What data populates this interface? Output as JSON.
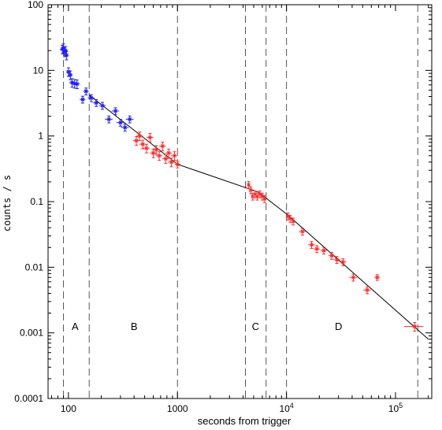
{
  "chart_data": {
    "type": "scatter",
    "title": "",
    "xlabel": "seconds from trigger",
    "ylabel": "counts / s",
    "x_scale": "log",
    "y_scale": "log",
    "xlim": [
      65,
      215000
    ],
    "ylim": [
      0.0001,
      100
    ],
    "grid": false,
    "x_ticks": [
      {
        "value": 100,
        "label": "100"
      },
      {
        "value": 1000,
        "label": "1000"
      },
      {
        "value": 10000,
        "label": "10",
        "sup": "4"
      },
      {
        "value": 100000,
        "label": "10",
        "sup": "5"
      }
    ],
    "y_ticks": [
      {
        "value": 100,
        "label": "100"
      },
      {
        "value": 10,
        "label": "10"
      },
      {
        "value": 1,
        "label": "1"
      },
      {
        "value": 0.1,
        "label": "0.1"
      },
      {
        "value": 0.01,
        "label": "0.01"
      },
      {
        "value": 0.001,
        "label": "0.001"
      },
      {
        "value": 0.0001,
        "label": "0.0001"
      }
    ],
    "colors": {
      "series_blue": "#1a1aff",
      "series_red": "#ff2a2a",
      "model": "#000000",
      "divider": "#555555"
    },
    "dividers": [
      90,
      155,
      1000,
      4200,
      6500,
      10000,
      160000
    ],
    "phase_labels": [
      {
        "text": "A",
        "x": 115,
        "y": 0.0011
      },
      {
        "text": "B",
        "x": 400,
        "y": 0.0011
      },
      {
        "text": "C",
        "x": 5200,
        "y": 0.0011
      },
      {
        "text": "D",
        "x": 30000,
        "y": 0.0011
      }
    ],
    "model_line": [
      [
        155,
        4.2
      ],
      [
        1000,
        0.37
      ],
      [
        5500,
        0.14
      ],
      [
        10000,
        0.065
      ],
      [
        200000,
        0.0008
      ]
    ],
    "series": [
      {
        "color_key": "series_blue",
        "points": [
          [
            88,
            21,
            0.05,
            0.15
          ],
          [
            90,
            22,
            0.05,
            0.15
          ],
          [
            92,
            19,
            0.05,
            0.15
          ],
          [
            94,
            20,
            0.05,
            0.15
          ],
          [
            96,
            17,
            0.05,
            0.15
          ],
          [
            100,
            9.5,
            0.05,
            0.15
          ],
          [
            104,
            8.5,
            0.05,
            0.15
          ],
          [
            108,
            6.5,
            0.06,
            0.15
          ],
          [
            114,
            6.3,
            0.06,
            0.15
          ],
          [
            120,
            6.2,
            0.06,
            0.15
          ],
          [
            135,
            3.6,
            0.06,
            0.12
          ],
          [
            145,
            4.8,
            0.06,
            0.12
          ],
          [
            162,
            3.8,
            0.07,
            0.12
          ],
          [
            180,
            3.2,
            0.07,
            0.12
          ],
          [
            205,
            2.9,
            0.07,
            0.12
          ],
          [
            235,
            1.8,
            0.08,
            0.12
          ],
          [
            270,
            2.4,
            0.08,
            0.12
          ],
          [
            300,
            1.6,
            0.08,
            0.12
          ],
          [
            330,
            1.35,
            0.08,
            0.12
          ],
          [
            365,
            1.8,
            0.08,
            0.12
          ]
        ]
      },
      {
        "color_key": "series_red",
        "points": [
          [
            420,
            0.85,
            0.07,
            0.15
          ],
          [
            450,
            1.0,
            0.07,
            0.15
          ],
          [
            480,
            0.75,
            0.07,
            0.15
          ],
          [
            520,
            0.65,
            0.07,
            0.15
          ],
          [
            560,
            0.95,
            0.07,
            0.15
          ],
          [
            600,
            0.55,
            0.07,
            0.15
          ],
          [
            640,
            0.62,
            0.07,
            0.15
          ],
          [
            680,
            0.5,
            0.07,
            0.15
          ],
          [
            730,
            0.7,
            0.07,
            0.15
          ],
          [
            780,
            0.45,
            0.07,
            0.15
          ],
          [
            830,
            0.55,
            0.07,
            0.15
          ],
          [
            880,
            0.4,
            0.07,
            0.15
          ],
          [
            940,
            0.5,
            0.07,
            0.15
          ],
          [
            1000,
            0.37,
            0.06,
            0.12
          ],
          [
            4500,
            0.18,
            0.03,
            0.12
          ],
          [
            4700,
            0.15,
            0.03,
            0.12
          ],
          [
            4900,
            0.12,
            0.03,
            0.12
          ],
          [
            5150,
            0.13,
            0.03,
            0.12
          ],
          [
            5400,
            0.12,
            0.03,
            0.12
          ],
          [
            5700,
            0.13,
            0.03,
            0.12
          ],
          [
            6000,
            0.12,
            0.03,
            0.12
          ],
          [
            6300,
            0.11,
            0.03,
            0.12
          ],
          [
            10300,
            0.06,
            0.03,
            0.12
          ],
          [
            10800,
            0.055,
            0.03,
            0.12
          ],
          [
            11500,
            0.05,
            0.03,
            0.12
          ],
          [
            14000,
            0.035,
            0.07,
            0.12
          ],
          [
            17000,
            0.022,
            0.07,
            0.12
          ],
          [
            19000,
            0.019,
            0.07,
            0.12
          ],
          [
            22000,
            0.018,
            0.07,
            0.12
          ],
          [
            26000,
            0.015,
            0.07,
            0.12
          ],
          [
            29000,
            0.013,
            0.07,
            0.12
          ],
          [
            33000,
            0.012,
            0.07,
            0.12
          ],
          [
            41000,
            0.007,
            0.08,
            0.12
          ],
          [
            55000,
            0.0045,
            0.08,
            0.12
          ],
          [
            68000,
            0.007,
            0.06,
            0.1
          ],
          [
            150000,
            0.00125,
            0.2,
            0.15
          ]
        ]
      }
    ]
  }
}
